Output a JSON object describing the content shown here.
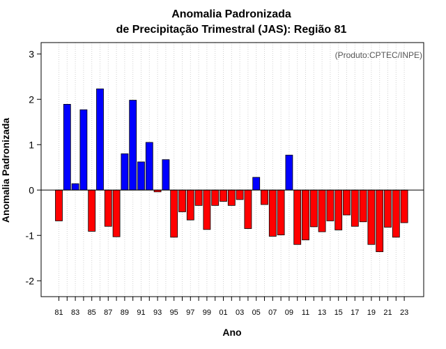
{
  "chart_data": {
    "type": "bar",
    "title_line1": "Anomalia Padronizada",
    "title_line2": "de Precipitação Trimestral (JAS): Região 81",
    "xlabel": "Ano",
    "ylabel": "Anomalia Padronizada",
    "credit": "(Produto:CPTEC/INPE)",
    "ylim": [
      -2.35,
      3.25
    ],
    "yticks": [
      -2,
      -1,
      0,
      1,
      2,
      3
    ],
    "grid": "vertical dotted",
    "positive_color": "#0000ff",
    "negative_color": "#ff0000",
    "years": [
      1981,
      1982,
      1983,
      1984,
      1985,
      1986,
      1987,
      1988,
      1989,
      1990,
      1991,
      1992,
      1993,
      1994,
      1995,
      1996,
      1997,
      1998,
      1999,
      2000,
      2001,
      2002,
      2003,
      2004,
      2005,
      2006,
      2007,
      2008,
      2009,
      2010,
      2011,
      2012,
      2013,
      2014,
      2015,
      2016,
      2017,
      2018,
      2019,
      2020,
      2021,
      2022,
      2023
    ],
    "tick_labels": [
      "81",
      "83",
      "85",
      "87",
      "89",
      "91",
      "93",
      "95",
      "97",
      "99",
      "01",
      "03",
      "05",
      "07",
      "09",
      "11",
      "13",
      "15",
      "17",
      "19",
      "21",
      "23"
    ],
    "values": [
      -0.68,
      1.89,
      0.14,
      1.77,
      -0.91,
      2.23,
      -0.8,
      -1.03,
      0.8,
      1.98,
      0.62,
      1.05,
      -0.04,
      0.67,
      -1.04,
      -0.48,
      -0.66,
      -0.34,
      -0.87,
      -0.34,
      -0.25,
      -0.34,
      -0.21,
      -0.85,
      0.28,
      -0.32,
      -1.02,
      -0.99,
      0.77,
      -1.2,
      -1.1,
      -0.81,
      -0.92,
      -0.68,
      -0.88,
      -0.55,
      -0.8,
      -0.7,
      -1.2,
      -1.36,
      -0.82,
      -1.04,
      -0.72
    ]
  }
}
